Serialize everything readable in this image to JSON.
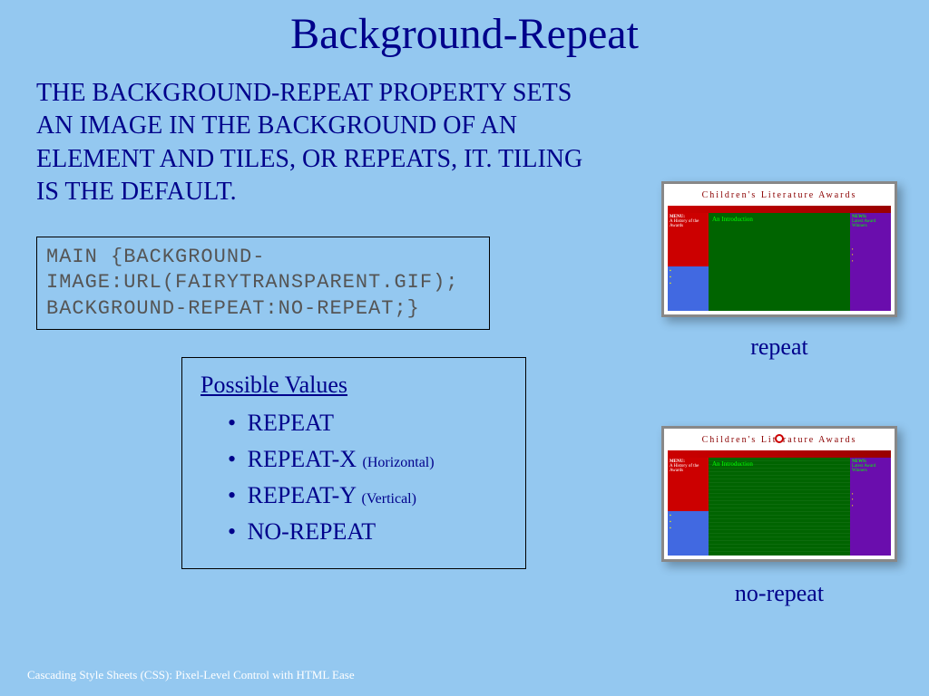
{
  "title": "Background-Repeat",
  "description_line1": "The background-repeat property sets an image in the",
  "description_line2": "background of an element and tiles, or repeats, it.",
  "description_line3": "Tiling is the default.",
  "code": {
    "l1": "main  {background-",
    "l2": "image:url(fairytransparent.gif);",
    "l3": "background-repeat:no-repeat;}"
  },
  "values": {
    "heading": "Possible Values",
    "items": [
      {
        "label": "Repeat",
        "paren": ""
      },
      {
        "label": "Repeat-x ",
        "paren": "(Horizontal)"
      },
      {
        "label": "Repeat-y ",
        "paren": "(Vertical)"
      },
      {
        "label": "No-repeat",
        "paren": ""
      }
    ]
  },
  "previews": {
    "header_text": "Children's Literature Awards",
    "menu_title": "MENU:",
    "menu_sub": "A History of the Awards",
    "news_title": "NEWS:",
    "news_sub": "Latest Award Winners",
    "intro": "An Introduction",
    "label1": "repeat",
    "label2": "no-repeat"
  },
  "footer": "Cascading Style Sheets (CSS): Pixel-Level Control with HTML Ease",
  "colors": {
    "slide_bg": "#94c8f0",
    "text": "#00008b",
    "code_text": "#555555",
    "preview_green": "#006400",
    "preview_red": "#cc0000",
    "preview_blue": "#4169e1",
    "preview_purple": "#6a0dad"
  }
}
